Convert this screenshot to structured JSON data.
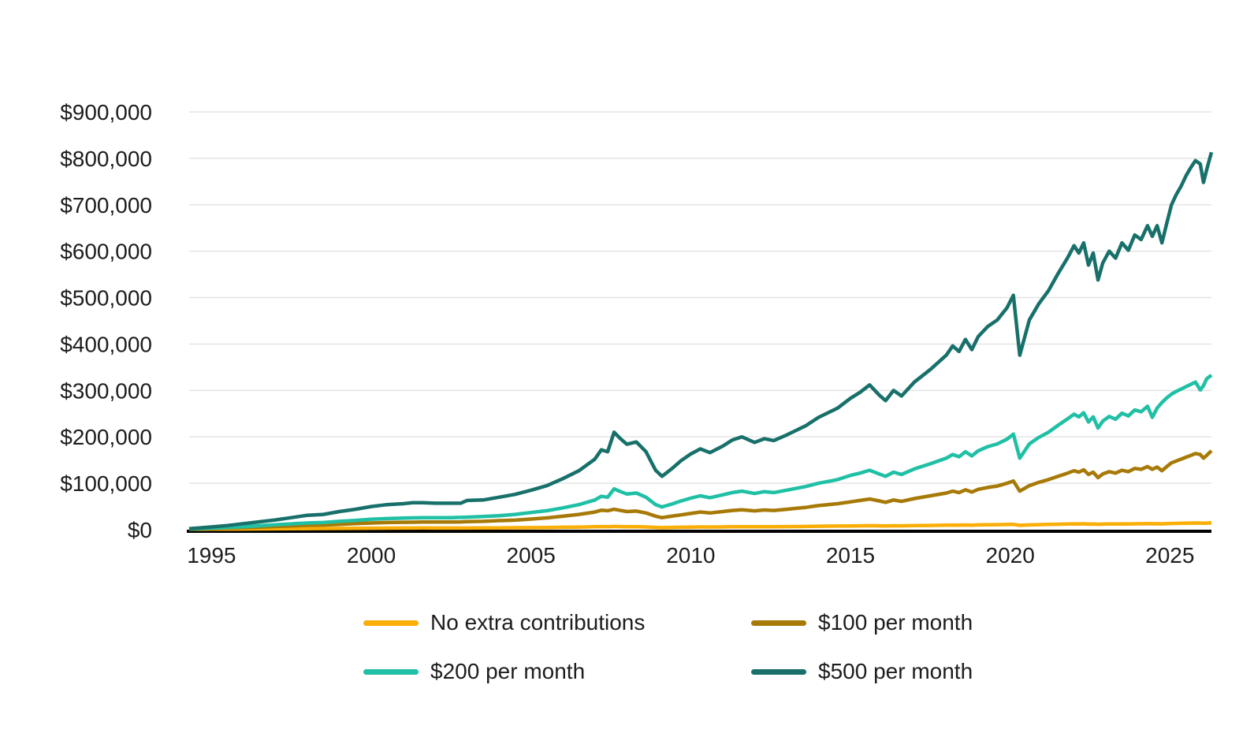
{
  "chart_data": {
    "type": "line",
    "title": "",
    "xlabel": "",
    "ylabel": "",
    "grid": "horizontal",
    "grid_color": "#e4e4e4",
    "axis_line_color": "#000000",
    "text_color": "#1d1d1d",
    "background_color": "#ffffff",
    "legend_position": "bottom",
    "x_range": [
      1994.3,
      2026.3
    ],
    "y_range": [
      0,
      900000
    ],
    "y_ticks": [
      {
        "value": 0,
        "label": "$0"
      },
      {
        "value": 100000,
        "label": "$100,000"
      },
      {
        "value": 200000,
        "label": "$200,000"
      },
      {
        "value": 300000,
        "label": "$300,000"
      },
      {
        "value": 400000,
        "label": "$400,000"
      },
      {
        "value": 500000,
        "label": "$500,000"
      },
      {
        "value": 600000,
        "label": "$600,000"
      },
      {
        "value": 700000,
        "label": "$700,000"
      },
      {
        "value": 800000,
        "label": "$800,000"
      },
      {
        "value": 900000,
        "label": "$900,000"
      }
    ],
    "x_ticks": [
      {
        "value": 1995,
        "label": "1995"
      },
      {
        "value": 2000,
        "label": "2000"
      },
      {
        "value": 2005,
        "label": "2005"
      },
      {
        "value": 2010,
        "label": "2010"
      },
      {
        "value": 2015,
        "label": "2015"
      },
      {
        "value": 2020,
        "label": "2020"
      },
      {
        "value": 2025,
        "label": "2025"
      }
    ],
    "x": [
      1994.3,
      1995,
      1995.5,
      1996,
      1996.5,
      1997,
      1997.5,
      1998,
      1998.5,
      1999,
      1999.5,
      2000,
      2000.5,
      2001,
      2001.3,
      2001.6,
      2002,
      2002.5,
      2002.8,
      2003,
      2003.5,
      2004,
      2004.5,
      2005,
      2005.5,
      2006,
      2006.5,
      2007,
      2007.2,
      2007.4,
      2007.6,
      2007.8,
      2008,
      2008.3,
      2008.6,
      2008.9,
      2009.1,
      2009.4,
      2009.7,
      2010,
      2010.3,
      2010.6,
      2011,
      2011.3,
      2011.6,
      2012,
      2012.3,
      2012.6,
      2013,
      2013.3,
      2013.6,
      2014,
      2014.3,
      2014.6,
      2015,
      2015.3,
      2015.6,
      2015.9,
      2016.1,
      2016.35,
      2016.6,
      2017,
      2017.5,
      2018,
      2018.2,
      2018.4,
      2018.6,
      2018.8,
      2019,
      2019.3,
      2019.6,
      2019.9,
      2020.1,
      2020.3,
      2020.6,
      2020.9,
      2021.2,
      2021.5,
      2021.8,
      2022,
      2022.15,
      2022.3,
      2022.45,
      2022.6,
      2022.75,
      2022.9,
      2023.1,
      2023.3,
      2023.5,
      2023.7,
      2023.9,
      2024.1,
      2024.3,
      2024.45,
      2024.6,
      2024.75,
      2024.9,
      2025.05,
      2025.2,
      2025.35,
      2025.5,
      2025.65,
      2025.8,
      2025.95,
      2026.05,
      2026.15,
      2026.3
    ],
    "series": [
      {
        "name": "No extra contributions",
        "color": "#FAAE06",
        "values": [
          1000,
          1200,
          1300,
          1500,
          1700,
          1900,
          2100,
          2400,
          2500,
          2800,
          3000,
          3300,
          3400,
          3500,
          3600,
          3700,
          3600,
          3500,
          3500,
          3600,
          3700,
          3900,
          4200,
          4500,
          4800,
          5200,
          5600,
          6200,
          6600,
          6500,
          7000,
          6700,
          6400,
          6500,
          6000,
          4900,
          4500,
          4900,
          5300,
          5600,
          5900,
          5700,
          6000,
          6300,
          6500,
          6200,
          6400,
          6300,
          6600,
          6800,
          7000,
          7400,
          7600,
          7800,
          8200,
          8400,
          8700,
          8300,
          8100,
          8500,
          8300,
          8800,
          9200,
          9700,
          10000,
          9800,
          10200,
          9900,
          10300,
          10600,
          10800,
          11200,
          11600,
          9400,
          10400,
          10900,
          11300,
          11800,
          12200,
          12600,
          12400,
          12700,
          12100,
          12400,
          11700,
          12100,
          12400,
          12200,
          12600,
          12400,
          12800,
          12700,
          13000,
          12700,
          12900,
          12500,
          13000,
          13400,
          13600,
          13800,
          14000,
          14200,
          14400,
          14300,
          13900,
          14200,
          14600
        ]
      },
      {
        "name": "$100 per month",
        "color": "#A77A07",
        "values": [
          1000,
          2500,
          3500,
          4500,
          5500,
          7000,
          8000,
          9500,
          10000,
          11500,
          13000,
          14500,
          15500,
          16000,
          16200,
          16500,
          16500,
          16500,
          16800,
          17500,
          18000,
          19500,
          20500,
          23000,
          25500,
          29000,
          33000,
          38000,
          42000,
          41000,
          44000,
          41500,
          39000,
          40000,
          36000,
          29000,
          26000,
          29000,
          32000,
          35000,
          38000,
          36000,
          39000,
          41500,
          43000,
          40500,
          42500,
          41500,
          44000,
          46000,
          48000,
          52000,
          54000,
          56000,
          60000,
          63000,
          66000,
          62000,
          59000,
          64000,
          61000,
          67000,
          73000,
          79000,
          83000,
          80000,
          86000,
          81000,
          87000,
          91000,
          94000,
          100000,
          105000,
          83000,
          95000,
          102000,
          108000,
          115000,
          122000,
          127000,
          124000,
          129000,
          119000,
          124000,
          112000,
          120000,
          125000,
          122000,
          128000,
          125000,
          132000,
          130000,
          136000,
          130000,
          135000,
          127000,
          136000,
          144000,
          148000,
          152000,
          156000,
          160000,
          164000,
          162000,
          154000,
          160000,
          170000
        ]
      },
      {
        "name": "$200 per month",
        "color": "#1FC0A5",
        "values": [
          1500,
          3500,
          5000,
          6500,
          8500,
          10500,
          12500,
          14500,
          15500,
          18000,
          20000,
          22500,
          24000,
          25000,
          25500,
          26000,
          26000,
          26000,
          26500,
          27000,
          28500,
          30000,
          33000,
          37000,
          41000,
          47000,
          54000,
          64000,
          72000,
          70000,
          88000,
          82000,
          77000,
          79000,
          70000,
          54000,
          49000,
          55000,
          62000,
          68000,
          73000,
          69000,
          75000,
          80000,
          83000,
          78000,
          82000,
          80000,
          85000,
          89000,
          93000,
          100000,
          104000,
          108000,
          117000,
          122000,
          128000,
          120000,
          115000,
          124000,
          119000,
          131000,
          142000,
          154000,
          162000,
          157000,
          168000,
          159000,
          170000,
          179000,
          185000,
          195000,
          206000,
          154000,
          185000,
          199000,
          210000,
          225000,
          239000,
          249000,
          243000,
          252000,
          232000,
          243000,
          219000,
          234000,
          244000,
          238000,
          251000,
          245000,
          258000,
          254000,
          266000,
          242000,
          262000,
          274000,
          284000,
          292000,
          298000,
          303000,
          308000,
          313000,
          318000,
          301000,
          310000,
          325000,
          333000
        ]
      },
      {
        "name": "$500 per month",
        "color": "#17706A",
        "values": [
          2000,
          6000,
          9000,
          13000,
          17000,
          21000,
          26000,
          31000,
          33000,
          39000,
          44000,
          50000,
          54000,
          56000,
          58000,
          58000,
          57000,
          57000,
          57000,
          63000,
          64000,
          70000,
          76000,
          85000,
          95000,
          110000,
          127000,
          152000,
          172000,
          168000,
          210000,
          196000,
          184000,
          189000,
          168000,
          128000,
          115000,
          131000,
          149000,
          163000,
          174000,
          166000,
          180000,
          193000,
          200000,
          188000,
          196000,
          192000,
          204000,
          214000,
          224000,
          242000,
          252000,
          262000,
          283000,
          296000,
          312000,
          290000,
          278000,
          300000,
          288000,
          318000,
          345000,
          376000,
          396000,
          384000,
          410000,
          388000,
          416000,
          438000,
          452000,
          478000,
          505000,
          376000,
          452000,
          487000,
          515000,
          552000,
          586000,
          612000,
          596000,
          618000,
          570000,
          596000,
          538000,
          575000,
          600000,
          585000,
          618000,
          602000,
          635000,
          625000,
          655000,
          632000,
          655000,
          618000,
          660000,
          700000,
          722000,
          740000,
          762000,
          780000,
          795000,
          788000,
          748000,
          775000,
          813000
        ]
      }
    ]
  },
  "legend": {
    "items": [
      {
        "label": "No extra contributions",
        "color": "#FAAE06"
      },
      {
        "label": "$100 per month",
        "color": "#A77A07"
      },
      {
        "label": "$200 per month",
        "color": "#1FC0A5"
      },
      {
        "label": "$500 per month",
        "color": "#17706A"
      }
    ]
  }
}
